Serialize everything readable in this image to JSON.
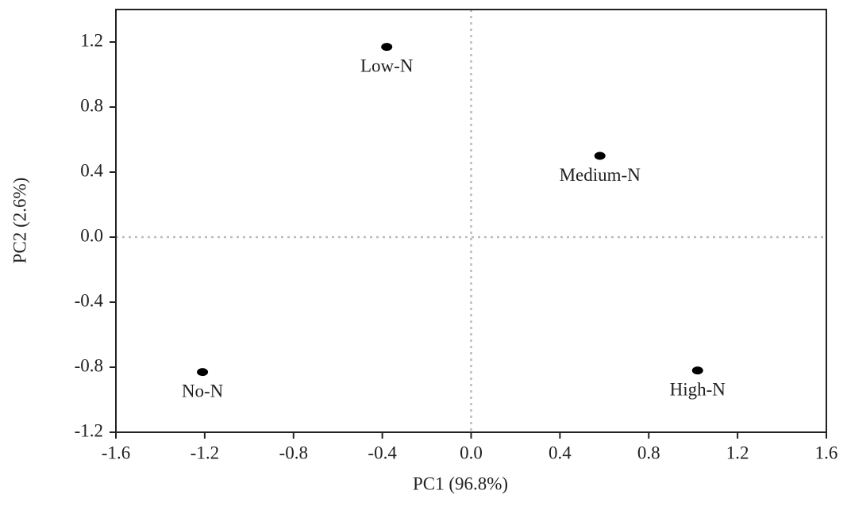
{
  "chart_data": {
    "type": "scatter",
    "xlabel": "PC1 (96.8%)",
    "ylabel": "PC2 (2.6%)",
    "x": [
      -0.38,
      0.58,
      -1.21,
      1.02
    ],
    "values": [
      1.17,
      0.5,
      -0.83,
      -0.82
    ],
    "point_labels": [
      "Low-N",
      "Medium-N",
      "No-N",
      "High-N"
    ],
    "color": "#000000",
    "xlim": [
      -1.6,
      1.6
    ],
    "ylim": [
      -1.2,
      1.4
    ],
    "xticks": [
      -1.6,
      -1.2,
      -0.8,
      -0.4,
      {
        "value": 0,
        "label": "0.0"
      },
      0.4,
      0.8,
      1.2,
      1.6
    ],
    "yticks": [
      -1.2,
      -0.8,
      -0.4,
      {
        "value": 0,
        "label": "0.0"
      },
      0.4,
      0.8,
      1.2
    ],
    "zero_lines": true
  }
}
